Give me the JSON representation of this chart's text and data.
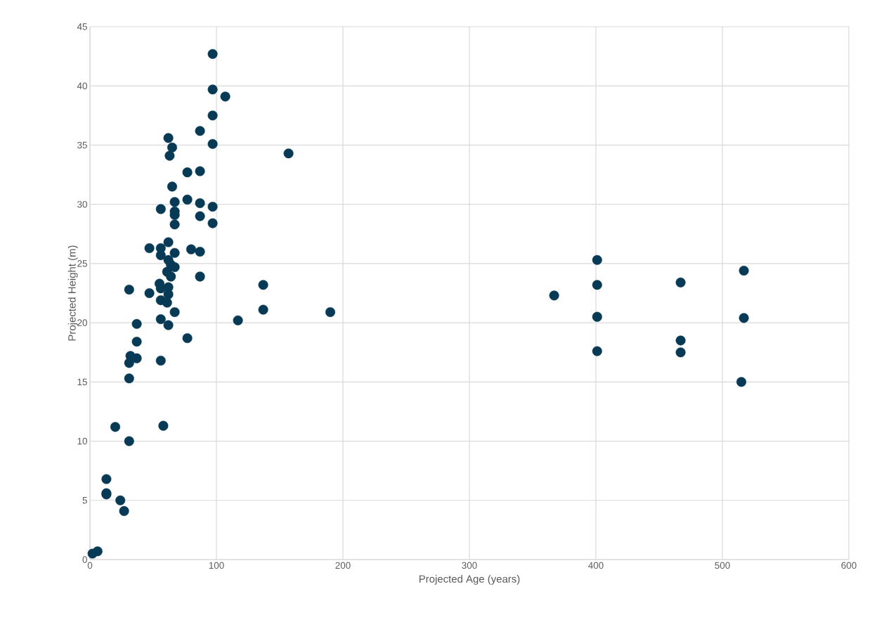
{
  "chart_data": {
    "type": "scatter",
    "xlabel": "Projected Age (years)",
    "ylabel": "Projected Height (m)",
    "xlim": [
      0,
      600
    ],
    "ylim": [
      0,
      45
    ],
    "xticks": [
      0,
      100,
      200,
      300,
      400,
      500,
      600
    ],
    "yticks": [
      0,
      5,
      10,
      15,
      20,
      25,
      30,
      35,
      40,
      45
    ],
    "grid": true,
    "marker": "circle",
    "series": [
      {
        "color": "#083a55",
        "x": [
          97,
          97,
          107,
          97,
          87,
          62,
          65,
          63,
          97,
          157,
          77,
          87,
          65,
          77,
          67,
          87,
          97,
          56,
          67,
          67,
          87,
          67,
          97,
          47,
          62,
          56,
          56,
          67,
          80,
          87,
          62,
          64,
          61,
          67,
          64,
          87,
          55,
          31,
          47,
          62,
          56,
          62,
          56,
          61,
          67,
          56,
          62,
          37,
          37,
          77,
          32,
          37,
          31,
          56,
          31,
          20,
          58,
          31,
          13,
          13,
          13,
          24,
          27,
          2,
          6,
          117,
          137,
          137,
          190,
          367,
          401,
          401,
          401,
          401,
          467,
          467,
          467,
          517,
          517,
          515
        ],
        "values": [
          42.7,
          39.7,
          39.1,
          37.5,
          36.2,
          35.6,
          34.8,
          34.1,
          35.1,
          34.3,
          32.7,
          32.8,
          31.5,
          30.4,
          30.2,
          30.1,
          29.8,
          29.6,
          29.4,
          29.1,
          29.0,
          28.3,
          28.4,
          26.3,
          26.8,
          26.3,
          25.7,
          25.9,
          26.2,
          26.0,
          25.3,
          24.9,
          24.3,
          24.7,
          23.9,
          23.9,
          23.3,
          22.8,
          22.5,
          23.0,
          22.9,
          22.4,
          21.9,
          21.7,
          20.9,
          20.3,
          19.8,
          19.9,
          18.4,
          18.7,
          17.2,
          17.0,
          16.6,
          16.8,
          15.3,
          11.2,
          11.3,
          10.0,
          6.8,
          5.6,
          5.5,
          5.0,
          4.1,
          0.5,
          0.7,
          20.2,
          23.2,
          21.1,
          20.9,
          22.3,
          25.3,
          23.2,
          20.5,
          17.6,
          23.4,
          18.5,
          17.5,
          24.4,
          20.4,
          15.0
        ]
      }
    ]
  }
}
